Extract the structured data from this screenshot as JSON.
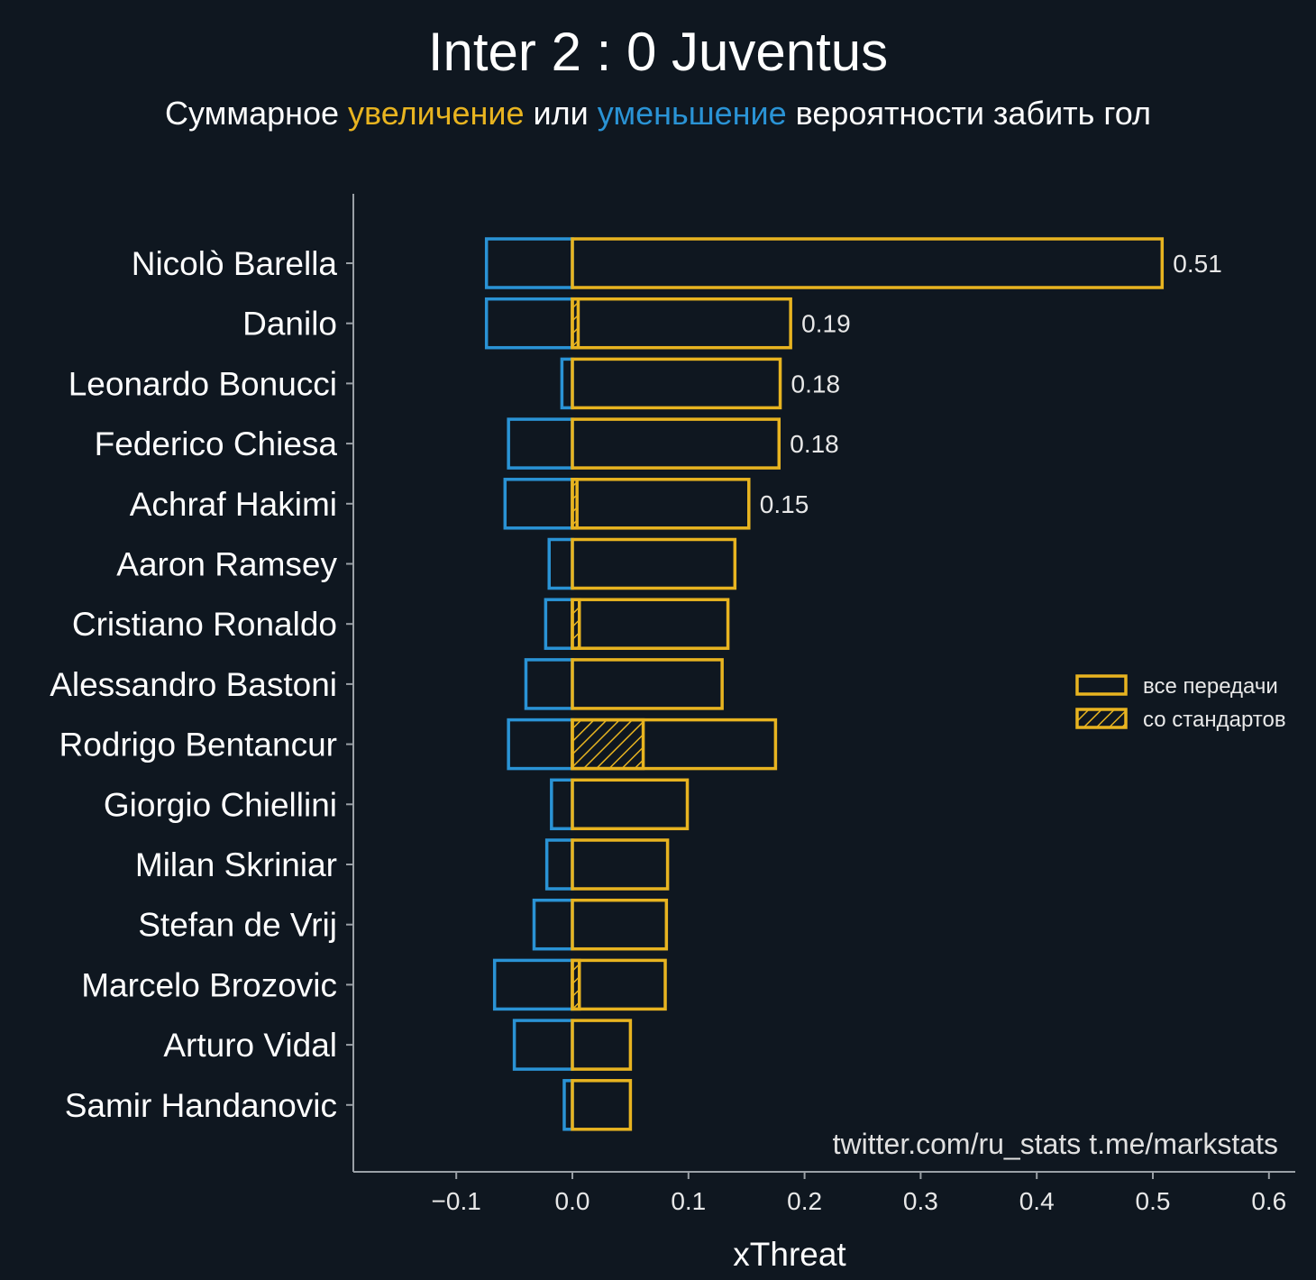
{
  "chart_data": {
    "type": "bar",
    "orientation": "horizontal",
    "title": "Inter 2 : 0 Juventus",
    "subtitle": {
      "part1": "Суммарное ",
      "part2": "увеличение",
      "part3": " или ",
      "part4": "уменьшение",
      "part5": " вероятности забить гол"
    },
    "xlabel": "xThreat",
    "xlim": [
      -0.2,
      0.62
    ],
    "xticks": [
      -0.1,
      0.0,
      0.1,
      0.2,
      0.3,
      0.4,
      0.5,
      0.6
    ],
    "xtick_labels": [
      "−0.1",
      "0.0",
      "0.1",
      "0.2",
      "0.3",
      "0.4",
      "0.5",
      "0.6"
    ],
    "categories": [
      "Nicolò Barella",
      "Danilo",
      "Leonardo Bonucci",
      "Federico Chiesa",
      "Achraf Hakimi",
      "Aaron Ramsey",
      "Cristiano Ronaldo",
      "Alessandro Bastoni",
      "Rodrigo Bentancur",
      "Giorgio Chiellini",
      "Milan Skriniar",
      "Stefan de Vrij",
      "Marcelo Brozovic",
      "Arturo Vidal",
      "Samir Handanovic"
    ],
    "series": [
      {
        "name": "все передачи",
        "color": "#e8b420",
        "values": [
          0.508,
          0.188,
          0.179,
          0.178,
          0.152,
          0.14,
          0.134,
          0.129,
          0.175,
          0.099,
          0.082,
          0.081,
          0.08,
          0.05,
          0.05
        ]
      },
      {
        "name": "со стандартов",
        "color": "#e8b420",
        "hatched": true,
        "values": [
          0,
          0.005,
          0,
          0,
          0.004,
          0,
          0.006,
          0,
          0.061,
          0,
          0,
          0,
          0.006,
          0,
          0
        ]
      },
      {
        "color": "#2a93d5",
        "values": [
          -0.074,
          -0.074,
          -0.009,
          -0.055,
          -0.058,
          -0.02,
          -0.023,
          -0.04,
          -0.055,
          -0.018,
          -0.022,
          -0.033,
          -0.067,
          -0.05,
          -0.007
        ]
      }
    ],
    "value_labels": [
      "0.51",
      "0.19",
      "0.18",
      "0.18",
      "0.15",
      "",
      "",
      "",
      "",
      "",
      "",
      "",
      "",
      "",
      ""
    ],
    "legend_position": "center-right",
    "colors": {
      "increase": "#e8b420",
      "decrease": "#2a93d5",
      "background": "#0f1720",
      "axis": "#9aa0a6"
    },
    "credit": "twitter.com/ru_stats  t.me/markstats"
  }
}
